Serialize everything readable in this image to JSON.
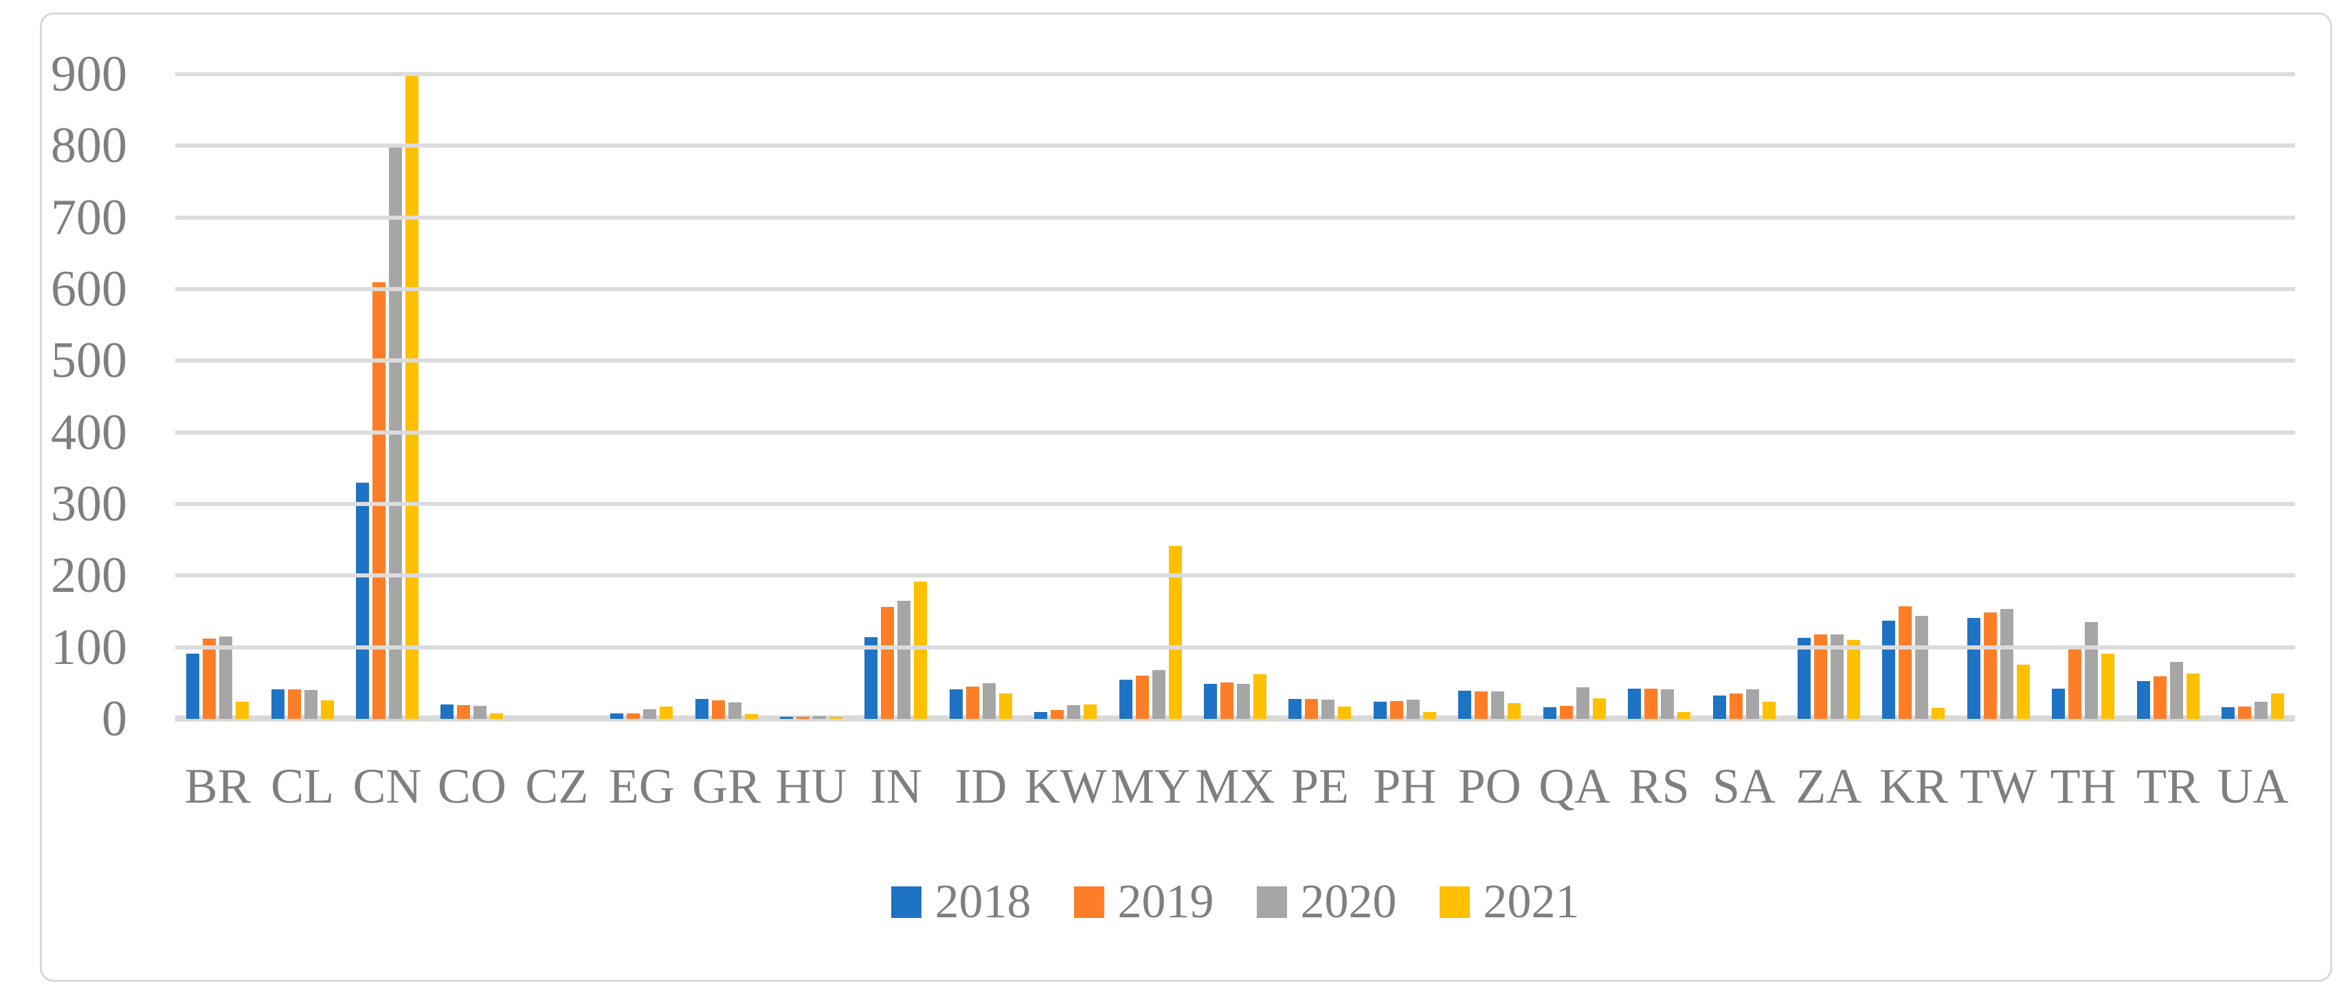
{
  "chart_data": {
    "type": "bar",
    "title": "",
    "xlabel": "",
    "ylabel": "",
    "categories": [
      "BR",
      "CL",
      "CN",
      "CO",
      "CZ",
      "EG",
      "GR",
      "HU",
      "IN",
      "ID",
      "KW",
      "MY",
      "MX",
      "PE",
      "PH",
      "PO",
      "QA",
      "RS",
      "SA",
      "ZA",
      "KR",
      "TW",
      "TH",
      "TR",
      "UA"
    ],
    "series": [
      {
        "name": "2018",
        "color": "#1e73c5",
        "values": [
          91,
          41,
          330,
          20,
          0,
          8,
          28,
          3,
          114,
          41,
          10,
          55,
          49,
          28,
          24,
          39,
          16,
          42,
          33,
          113,
          137,
          141,
          42,
          53,
          16
        ]
      },
      {
        "name": "2019",
        "color": "#fd7e27",
        "values": [
          112,
          41,
          610,
          19,
          0,
          8,
          26,
          3,
          156,
          45,
          12,
          60,
          51,
          28,
          25,
          38,
          18,
          42,
          35,
          118,
          157,
          149,
          100,
          59,
          17
        ]
      },
      {
        "name": "2020",
        "color": "#a6a6a6",
        "values": [
          115,
          40,
          800,
          18,
          0,
          13,
          23,
          4,
          165,
          50,
          19,
          68,
          49,
          27,
          27,
          38,
          44,
          41,
          41,
          118,
          144,
          153,
          135,
          80,
          24
        ]
      },
      {
        "name": "2021",
        "color": "#ffc000",
        "values": [
          24,
          26,
          900,
          8,
          0,
          17,
          7,
          3,
          192,
          35,
          20,
          242,
          62,
          17,
          10,
          22,
          29,
          10,
          24,
          110,
          15,
          76,
          91,
          63,
          35
        ]
      }
    ],
    "ylim": [
      0,
      900
    ],
    "ytick_interval": 100,
    "yticks": [
      "0",
      "100",
      "200",
      "300",
      "400",
      "500",
      "600",
      "700",
      "800",
      "900"
    ],
    "grid": "horizontal",
    "legend_position": "bottom",
    "legend_labels": [
      "2018",
      "2019",
      "2020",
      "2021"
    ]
  },
  "style": {
    "gridline_color": "#dcdcdc",
    "axis_line_color": "#d9d9d9",
    "text_color": "#7f7f7f",
    "border_color": "#d9d9d9",
    "background_color": "#ffffff"
  }
}
